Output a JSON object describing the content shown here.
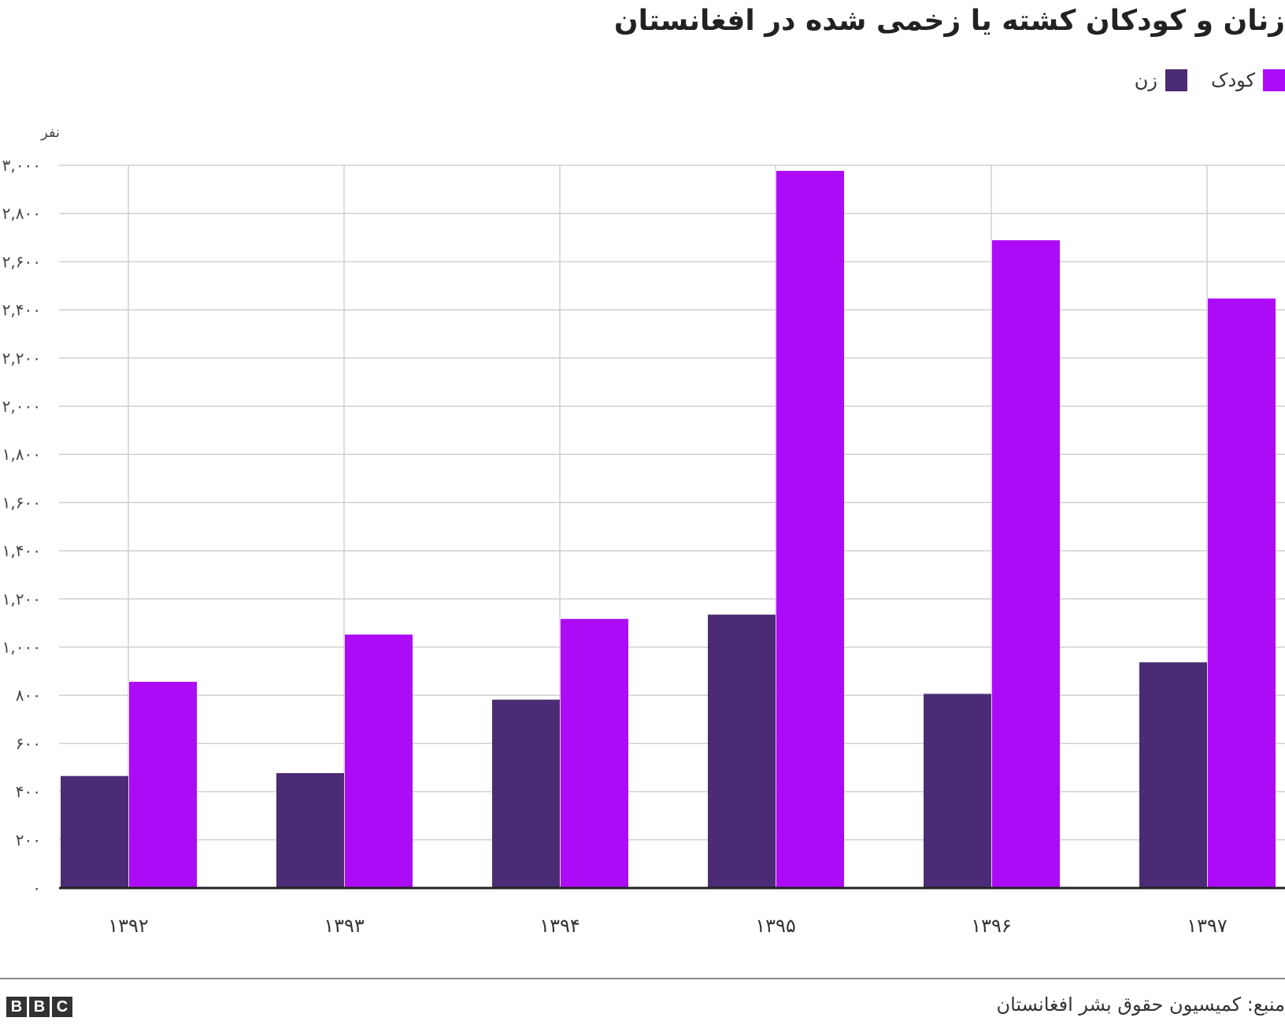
{
  "title": "زنان و کودکان کشته یا زخمی شده در افغانستان",
  "legend": {
    "child_label": "کودک",
    "woman_label": "زن"
  },
  "y_unit": "نفر",
  "source": "منبع: کمیسیون حقوق بشر افغانستان",
  "logo_text": [
    "B",
    "B",
    "C"
  ],
  "colors": {
    "woman": "#4b2c74",
    "child": "#ac0bf8",
    "grid": "#d0d0d0",
    "baseline": "#222222"
  },
  "chart_data": {
    "type": "bar",
    "categories": [
      "۱۳۹۲",
      "۱۳۹۳",
      "۱۳۹۴",
      "۱۳۹۵",
      "۱۳۹۶",
      "۱۳۹۷"
    ],
    "series": [
      {
        "name": "زن",
        "values": [
          465,
          477,
          782,
          1135,
          806,
          937
        ]
      },
      {
        "name": "کودک",
        "values": [
          856,
          1052,
          1117,
          2977,
          2689,
          2447
        ]
      }
    ],
    "yticks": [
      "۰",
      "۲۰۰",
      "۴۰۰",
      "۶۰۰",
      "۸۰۰",
      "۱,۰۰۰",
      "۱,۲۰۰",
      "۱,۴۰۰",
      "۱,۶۰۰",
      "۱,۸۰۰",
      "۲,۰۰۰",
      "۲,۲۰۰",
      "۲,۴۰۰",
      "۲,۶۰۰",
      "۲,۸۰۰",
      "۳,۰۰۰"
    ],
    "ylim": [
      0,
      3000
    ],
    "grid": true,
    "legend_position": "top-right"
  }
}
